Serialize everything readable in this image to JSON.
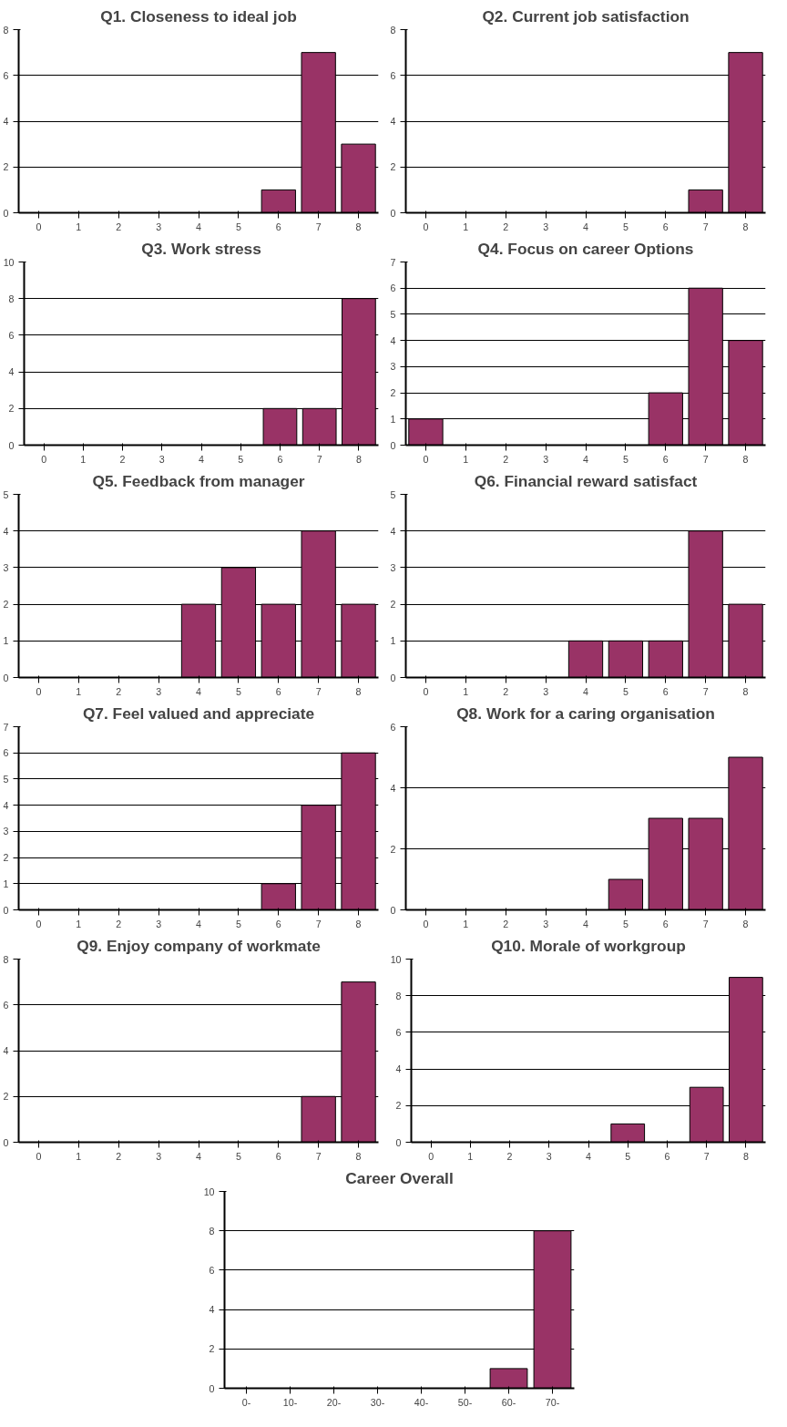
{
  "chart_data": [
    {
      "type": "bar",
      "title": "Q1. Closeness to ideal job",
      "categories": [
        "0",
        "1",
        "2",
        "3",
        "4",
        "5",
        "6",
        "7",
        "8"
      ],
      "values": [
        0,
        0,
        0,
        0,
        0,
        0,
        1,
        7,
        3
      ],
      "color": "#993366",
      "ylim": [
        0,
        8
      ],
      "yticks": [
        0,
        2,
        4,
        6,
        8
      ],
      "grid": "y"
    },
    {
      "type": "bar",
      "title": "Q2. Current job satisfaction",
      "categories": [
        "0",
        "1",
        "2",
        "3",
        "4",
        "5",
        "6",
        "7",
        "8"
      ],
      "values": [
        0,
        0,
        0,
        0,
        0,
        0,
        0,
        1,
        7
      ],
      "color": "#993366",
      "ylim": [
        0,
        8
      ],
      "yticks": [
        0,
        2,
        4,
        6,
        8
      ],
      "grid": "y"
    },
    {
      "type": "bar",
      "title": "Q3. Work stress",
      "categories": [
        "0",
        "1",
        "2",
        "3",
        "4",
        "5",
        "6",
        "7",
        "8"
      ],
      "values": [
        0,
        0,
        0,
        0,
        0,
        0,
        2,
        2,
        8
      ],
      "color": "#993366",
      "ylim": [
        0,
        10
      ],
      "yticks": [
        0,
        2,
        4,
        6,
        8,
        10
      ],
      "grid": "y"
    },
    {
      "type": "bar",
      "title": "Q4. Focus on career Options",
      "categories": [
        "0",
        "1",
        "2",
        "3",
        "4",
        "5",
        "6",
        "7",
        "8"
      ],
      "values": [
        1,
        0,
        0,
        0,
        0,
        0,
        2,
        6,
        4
      ],
      "color": "#993366",
      "ylim": [
        0,
        7
      ],
      "yticks": [
        0,
        1,
        2,
        3,
        4,
        5,
        6,
        7
      ],
      "grid": "y"
    },
    {
      "type": "bar",
      "title": "Q5. Feedback from manager",
      "categories": [
        "0",
        "1",
        "2",
        "3",
        "4",
        "5",
        "6",
        "7",
        "8"
      ],
      "values": [
        0,
        0,
        0,
        0,
        2,
        3,
        2,
        4,
        2
      ],
      "color": "#993366",
      "ylim": [
        0,
        5
      ],
      "yticks": [
        0,
        1,
        2,
        3,
        4,
        5
      ],
      "grid": "y"
    },
    {
      "type": "bar",
      "title": "Q6. Financial reward satisfact",
      "categories": [
        "0",
        "1",
        "2",
        "3",
        "4",
        "5",
        "6",
        "7",
        "8"
      ],
      "values": [
        0,
        0,
        0,
        0,
        1,
        1,
        1,
        4,
        2
      ],
      "color": "#993366",
      "ylim": [
        0,
        5
      ],
      "yticks": [
        0,
        1,
        2,
        3,
        4,
        5
      ],
      "grid": "y"
    },
    {
      "type": "bar",
      "title": "Q7. Feel valued and appreciate",
      "categories": [
        "0",
        "1",
        "2",
        "3",
        "4",
        "5",
        "6",
        "7",
        "8"
      ],
      "values": [
        0,
        0,
        0,
        0,
        0,
        0,
        1,
        4,
        6
      ],
      "color": "#993366",
      "ylim": [
        0,
        7
      ],
      "yticks": [
        0,
        1,
        2,
        3,
        4,
        5,
        6,
        7
      ],
      "grid": "y"
    },
    {
      "type": "bar",
      "title": "Q8. Work for a caring organisation",
      "categories": [
        "0",
        "1",
        "2",
        "3",
        "4",
        "5",
        "6",
        "7",
        "8"
      ],
      "values": [
        0,
        0,
        0,
        0,
        0,
        1,
        3,
        3,
        5
      ],
      "color": "#993366",
      "ylim": [
        0,
        6
      ],
      "yticks": [
        0,
        2,
        4,
        6
      ],
      "grid": "y"
    },
    {
      "type": "bar",
      "title": "Q9. Enjoy company of workmate",
      "categories": [
        "0",
        "1",
        "2",
        "3",
        "4",
        "5",
        "6",
        "7",
        "8"
      ],
      "values": [
        0,
        0,
        0,
        0,
        0,
        0,
        0,
        2,
        7
      ],
      "color": "#993366",
      "ylim": [
        0,
        8
      ],
      "yticks": [
        0,
        2,
        4,
        6,
        8
      ],
      "grid": "y"
    },
    {
      "type": "bar",
      "title": "Q10. Morale of workgroup",
      "categories": [
        "0",
        "1",
        "2",
        "3",
        "4",
        "5",
        "6",
        "7",
        "8"
      ],
      "values": [
        0,
        0,
        0,
        0,
        0,
        1,
        0,
        3,
        9
      ],
      "color": "#993366",
      "ylim": [
        0,
        10
      ],
      "yticks": [
        0,
        2,
        4,
        6,
        8,
        10
      ],
      "grid": "y"
    },
    {
      "type": "bar",
      "title": "Career Overall",
      "categories": [
        "0-",
        "10-",
        "20-",
        "30-",
        "40-",
        "50-",
        "60-",
        "70-"
      ],
      "values": [
        0,
        0,
        0,
        0,
        0,
        0,
        1,
        8
      ],
      "color": "#993366",
      "ylim": [
        0,
        10
      ],
      "yticks": [
        0,
        2,
        4,
        6,
        8,
        10
      ],
      "grid": "y"
    }
  ]
}
